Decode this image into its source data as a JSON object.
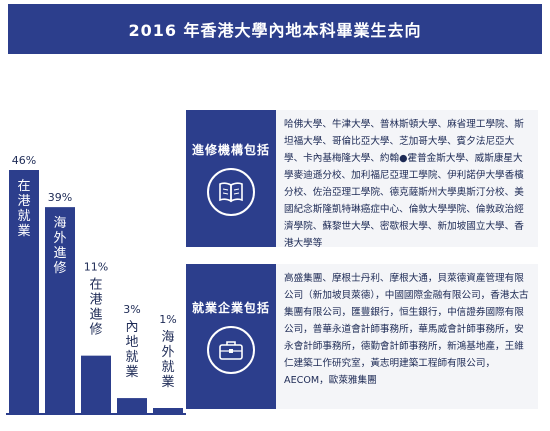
{
  "title": "2016 年香港大學內地本科畢業生去向",
  "chart_data": {
    "type": "bar",
    "categories": [
      "在港就業",
      "海外進修",
      "在港進修",
      "內地就業",
      "海外就業"
    ],
    "values": [
      46,
      39,
      11,
      3,
      1
    ],
    "value_labels": [
      "46%",
      "39%",
      "11%",
      "3%",
      "1%"
    ],
    "title": "2016 年香港大學內地本科畢業生去向",
    "xlabel": "",
    "ylabel": "",
    "ylim": [
      0,
      46
    ],
    "grid": false,
    "bar_color": "#2c3e8c"
  },
  "study": {
    "label": "進修機構包括",
    "icon": "book-icon",
    "text": "哈佛大學、牛津大學、普林斯頓大學、麻省理工學院、斯坦福大學、哥倫比亞大學、芝加哥大學、賓夕法尼亞大學、卡內基梅隆大學、約翰●霍普金斯大學、威斯康星大學麥迪遜分校、加利福尼亞理工學院、伊利諾伊大學香檳分校、佐治亞理工學院、德克薩斯州大學奧斯汀分校、美國紀念斯隆凱特琳癌症中心、倫敦大學學院、倫敦政治經濟學院、蘇黎世大學、密歇根大學、新加坡國立大學、香港大學等"
  },
  "work": {
    "label": "就業企業包括",
    "icon": "briefcase-icon",
    "text": "高盛集團、摩根士丹利、摩根大通，貝萊德資產管理有限公司（新加坡貝萊德），中國國際金融有限公司，香港太古集團有限公司，匯豐銀行，恒生銀行，中信證券國際有限公司，普華永道會計師事務所，華馬威會計師事務所，安永會計師事務所，德勤會計師事務所，新鴻基地產，王維仁建築工作研究室，黃志明建築工程師有限公司，AECOM，歐萊雅集團"
  }
}
